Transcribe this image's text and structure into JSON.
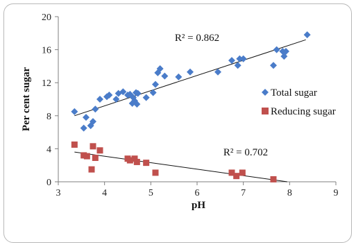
{
  "chart_data": {
    "type": "scatter",
    "xlabel": "pH",
    "ylabel": "Per cent sugar",
    "xlim": [
      3,
      9
    ],
    "ylim": [
      0,
      20
    ],
    "x_ticks": [
      "3",
      "4",
      "5",
      "6",
      "7",
      "8",
      "9"
    ],
    "y_ticks": [
      "0",
      "4",
      "8",
      "12",
      "16",
      "20"
    ],
    "grid": false,
    "legend_position": "right",
    "series": [
      {
        "name": "Total sugar",
        "color": "#4a7cc9",
        "marker": "diamond",
        "points": [
          [
            3.35,
            8.5
          ],
          [
            3.55,
            6.5
          ],
          [
            3.6,
            7.8
          ],
          [
            3.7,
            6.8
          ],
          [
            3.75,
            7.3
          ],
          [
            3.8,
            8.8
          ],
          [
            3.9,
            10.0
          ],
          [
            4.05,
            10.3
          ],
          [
            4.1,
            10.5
          ],
          [
            4.25,
            10.0
          ],
          [
            4.3,
            10.7
          ],
          [
            4.4,
            10.9
          ],
          [
            4.5,
            10.5
          ],
          [
            4.55,
            10.6
          ],
          [
            4.6,
            9.5
          ],
          [
            4.62,
            10.2
          ],
          [
            4.65,
            9.8
          ],
          [
            4.68,
            10.8
          ],
          [
            4.7,
            9.4
          ],
          [
            4.72,
            10.7
          ],
          [
            4.9,
            10.2
          ],
          [
            5.05,
            10.8
          ],
          [
            5.1,
            11.8
          ],
          [
            5.15,
            13.2
          ],
          [
            5.2,
            13.7
          ],
          [
            5.3,
            12.8
          ],
          [
            5.6,
            12.7
          ],
          [
            5.85,
            13.3
          ],
          [
            6.45,
            13.3
          ],
          [
            6.75,
            14.7
          ],
          [
            6.88,
            14.1
          ],
          [
            6.92,
            14.9
          ],
          [
            7.0,
            14.9
          ],
          [
            7.65,
            14.1
          ],
          [
            7.72,
            16.0
          ],
          [
            7.85,
            15.8
          ],
          [
            7.88,
            15.2
          ],
          [
            7.92,
            15.8
          ],
          [
            8.38,
            17.8
          ]
        ],
        "trendline": {
          "x": [
            3.35,
            8.35
          ],
          "y": [
            8.0,
            17.2
          ]
        }
      },
      {
        "name": "Reducing sugar",
        "color": "#c0504d",
        "marker": "square",
        "points": [
          [
            3.35,
            4.5
          ],
          [
            3.55,
            3.2
          ],
          [
            3.62,
            3.1
          ],
          [
            3.72,
            1.5
          ],
          [
            3.75,
            4.3
          ],
          [
            3.8,
            2.9
          ],
          [
            3.9,
            3.8
          ],
          [
            4.5,
            2.8
          ],
          [
            4.55,
            2.6
          ],
          [
            4.65,
            2.8
          ],
          [
            4.7,
            2.4
          ],
          [
            4.9,
            2.3
          ],
          [
            5.1,
            1.1
          ],
          [
            6.75,
            1.1
          ],
          [
            6.85,
            0.7
          ],
          [
            6.98,
            1.1
          ],
          [
            7.65,
            0.3
          ]
        ],
        "trendline": {
          "x": [
            3.35,
            7.95
          ],
          "y": [
            3.6,
            0.0
          ]
        }
      }
    ],
    "annotations": [
      {
        "text": "R² = 0.862",
        "x": 6.0,
        "y": 17.5
      },
      {
        "text": "R² = 0.702",
        "x": 7.05,
        "y": 3.6
      }
    ]
  }
}
